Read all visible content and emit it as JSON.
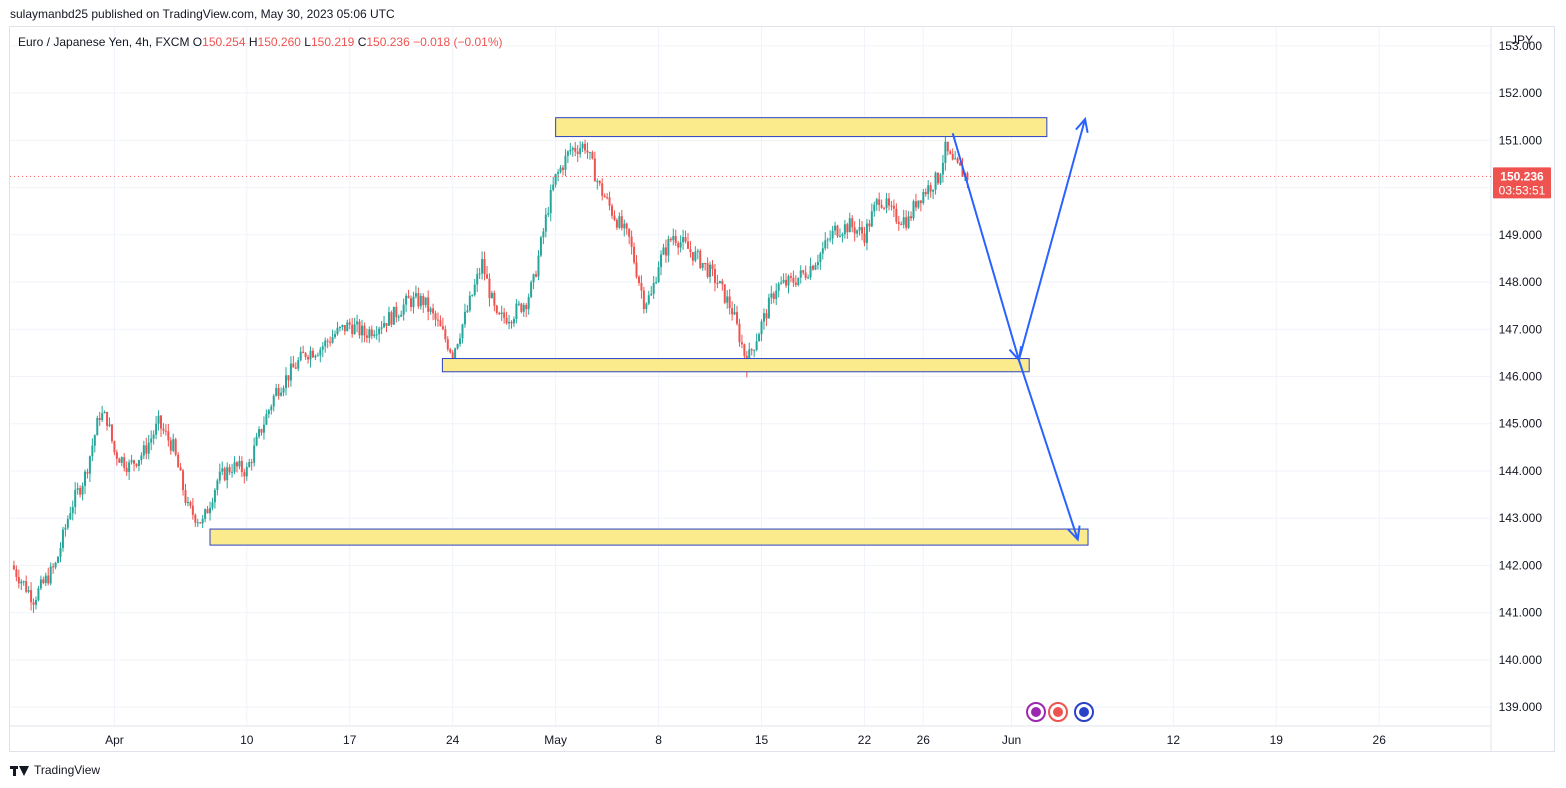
{
  "header": {
    "published": "sulaymanbd25 published on TradingView.com, May 30, 2023 05:06 UTC"
  },
  "legend": {
    "symbol": "Euro / Japanese Yen, 4h, FXCM",
    "o_label": "O",
    "o": "150.254",
    "h_label": "H",
    "h": "150.260",
    "l_label": "L",
    "l": "150.219",
    "c_label": "C",
    "c": "150.236",
    "change": "−0.018 (−0.01%)"
  },
  "price_tag": {
    "price": "150.236",
    "countdown": "03:53:51"
  },
  "footer": {
    "brand": "TradingView"
  },
  "colors": {
    "up": "#26a69a",
    "down": "#ef5350",
    "zone_fill": "#fbeb8c",
    "zone_border": "#2a42c7",
    "arrow": "#2962ff"
  },
  "chart_data": {
    "type": "candlestick",
    "currency": "JPY",
    "last_price": 150.236,
    "ylim": [
      138.6,
      153.4
    ],
    "y_ticks": [
      "139.000",
      "140.000",
      "141.000",
      "142.000",
      "143.000",
      "144.000",
      "145.000",
      "146.000",
      "147.000",
      "148.000",
      "149.000",
      "150.000",
      "151.000",
      "152.000",
      "153.000"
    ],
    "x_ticks": [
      "Apr",
      "10",
      "17",
      "24",
      "May",
      "8",
      "15",
      "22",
      "26",
      "Jun",
      "12",
      "19",
      "26"
    ],
    "x_tick_days": [
      31,
      40,
      47,
      54,
      61,
      68,
      75,
      82,
      86,
      92,
      103,
      110,
      117
    ],
    "xlim": [
      23.9,
      124.6
    ],
    "close_path": [
      [
        24.0,
        142.0
      ],
      [
        25.5,
        141.3
      ],
      [
        27.0,
        142.0
      ],
      [
        28.0,
        143.2
      ],
      [
        29.0,
        143.9
      ],
      [
        30.0,
        145.2
      ],
      [
        30.5,
        145.1
      ],
      [
        31.0,
        144.4
      ],
      [
        32.0,
        144.1
      ],
      [
        33.0,
        144.4
      ],
      [
        34.0,
        145.0
      ],
      [
        35.0,
        144.5
      ],
      [
        36.0,
        143.2
      ],
      [
        37.0,
        142.9
      ],
      [
        38.0,
        143.8
      ],
      [
        39.0,
        144.1
      ],
      [
        40.0,
        144.0
      ],
      [
        41.0,
        144.9
      ],
      [
        42.0,
        145.7
      ],
      [
        43.0,
        146.1
      ],
      [
        44.0,
        146.5
      ],
      [
        45.0,
        146.6
      ],
      [
        46.0,
        146.9
      ],
      [
        47.0,
        147.1
      ],
      [
        48.0,
        146.9
      ],
      [
        49.0,
        147.1
      ],
      [
        50.0,
        147.3
      ],
      [
        51.0,
        147.6
      ],
      [
        52.0,
        147.6
      ],
      [
        53.0,
        147.1
      ],
      [
        54.0,
        146.5
      ],
      [
        55.0,
        147.4
      ],
      [
        56.0,
        148.4
      ],
      [
        57.0,
        147.2
      ],
      [
        58.0,
        147.3
      ],
      [
        59.0,
        147.6
      ],
      [
        59.5,
        148.0
      ],
      [
        60.0,
        148.8
      ],
      [
        60.5,
        149.6
      ],
      [
        61.0,
        150.2
      ],
      [
        62.0,
        150.8
      ],
      [
        63.0,
        150.9
      ],
      [
        64.0,
        150.0
      ],
      [
        65.0,
        149.4
      ],
      [
        66.0,
        148.9
      ],
      [
        67.0,
        147.6
      ],
      [
        67.5,
        147.7
      ],
      [
        68.0,
        148.4
      ],
      [
        69.0,
        149.0
      ],
      [
        70.0,
        148.7
      ],
      [
        71.0,
        148.4
      ],
      [
        72.0,
        148.0
      ],
      [
        73.0,
        147.4
      ],
      [
        74.0,
        146.3
      ],
      [
        75.0,
        147.1
      ],
      [
        76.0,
        147.9
      ],
      [
        77.0,
        148.0
      ],
      [
        78.0,
        148.2
      ],
      [
        79.0,
        148.6
      ],
      [
        80.0,
        149.1
      ],
      [
        81.0,
        149.2
      ],
      [
        82.0,
        149.0
      ],
      [
        83.0,
        149.8
      ],
      [
        84.0,
        149.4
      ],
      [
        85.0,
        149.3
      ],
      [
        85.5,
        149.7
      ],
      [
        86.0,
        149.9
      ],
      [
        87.0,
        150.2
      ],
      [
        87.5,
        150.8
      ],
      [
        88.0,
        150.5
      ],
      [
        89.0,
        150.236
      ]
    ],
    "zones": [
      {
        "day_start": 61.0,
        "day_end": 94.4,
        "price_low": 151.08,
        "price_high": 151.48
      },
      {
        "day_start": 53.3,
        "day_end": 93.2,
        "price_low": 146.1,
        "price_high": 146.38
      },
      {
        "day_start": 37.5,
        "day_end": 97.2,
        "price_low": 142.43,
        "price_high": 142.77
      }
    ],
    "projection_path": [
      [
        88.0,
        151.15
      ],
      [
        92.5,
        146.35
      ],
      [
        97.0,
        151.45
      ]
    ],
    "projection_path_2": [
      [
        92.5,
        146.35
      ],
      [
        96.5,
        142.55
      ]
    ]
  }
}
